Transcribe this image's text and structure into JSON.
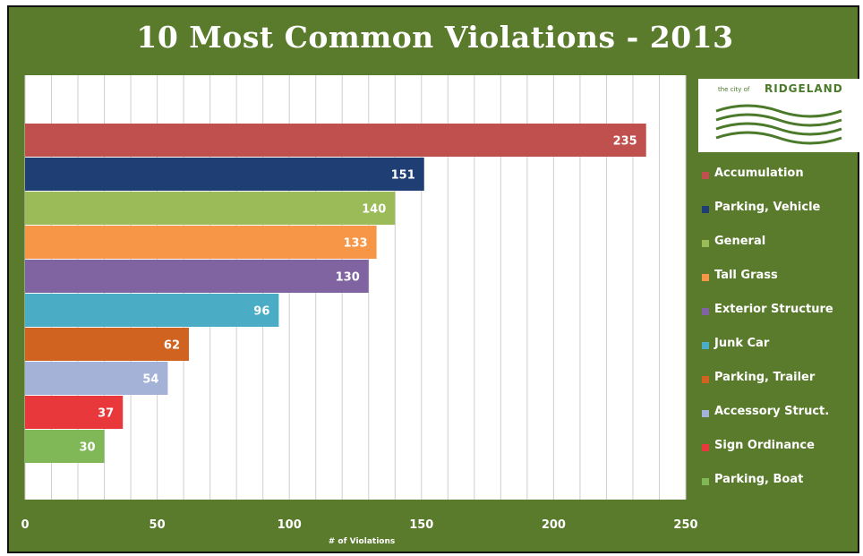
{
  "chart_data": {
    "type": "bar",
    "orientation": "horizontal",
    "title": "10 Most Common Violations - 2013",
    "xlabel": "# of Violations",
    "ylabel": "",
    "xlim": [
      0,
      250
    ],
    "xticks": [
      0,
      50,
      100,
      150,
      200,
      250
    ],
    "grid": true,
    "legend_position": "right",
    "categories": [
      "Accumulation",
      "Parking, Vehicle",
      "General",
      "Tall Grass",
      "Exterior Structure",
      "Junk Car",
      "Parking, Trailer",
      "Accessory Struct.",
      "Sign Ordinance",
      "Parking, Boat"
    ],
    "values": [
      235,
      151,
      140,
      133,
      130,
      96,
      62,
      54,
      37,
      30
    ],
    "colors": [
      "#c0504d",
      "#1f3e74",
      "#9bbb59",
      "#f79646",
      "#8064a2",
      "#4bacc6",
      "#d0631f",
      "#a4b2d8",
      "#e8383b",
      "#80b857"
    ]
  },
  "logo": {
    "small_text": "the city of",
    "name": "RIDGELAND"
  }
}
